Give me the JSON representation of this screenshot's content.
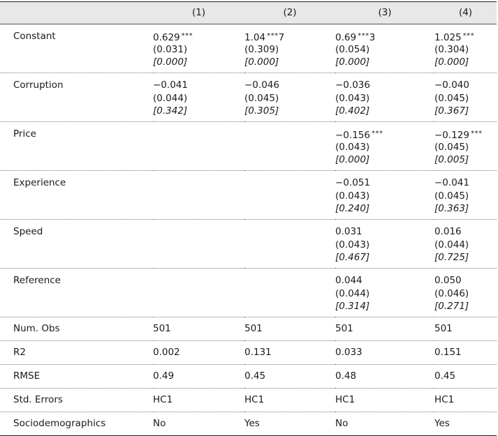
{
  "columns": [
    "",
    "(1)",
    "(2)",
    "(3)",
    "(4)"
  ],
  "coef_rows": [
    {
      "label": "Constant",
      "cells": [
        {
          "coef": "0.629",
          "stars": "***",
          "tail": "",
          "se": "(0.031)",
          "p": "[0.000]"
        },
        {
          "coef": "1.04",
          "stars": "***",
          "tail": "7",
          "se": "(0.309)",
          "p": "[0.000]"
        },
        {
          "coef": "0.69",
          "stars": "***",
          "tail": "3",
          "se": "(0.054)",
          "p": "[0.000]"
        },
        {
          "coef": "1.025",
          "stars": "***",
          "tail": "",
          "se": "(0.304)",
          "p": "[0.000]"
        }
      ]
    },
    {
      "label": "Corruption",
      "cells": [
        {
          "coef": "−0.041",
          "stars": "",
          "tail": "",
          "se": "(0.044)",
          "p": "[0.342]"
        },
        {
          "coef": "−0.046",
          "stars": "",
          "tail": "",
          "se": "(0.045)",
          "p": "[0.305]"
        },
        {
          "coef": "−0.036",
          "stars": "",
          "tail": "",
          "se": "(0.043)",
          "p": "[0.402]"
        },
        {
          "coef": "−0.040",
          "stars": "",
          "tail": "",
          "se": "(0.045)",
          "p": "[0.367]"
        }
      ]
    },
    {
      "label": "Price",
      "cells": [
        {
          "coef": "",
          "stars": "",
          "tail": "",
          "se": "",
          "p": ""
        },
        {
          "coef": "",
          "stars": "",
          "tail": "",
          "se": "",
          "p": ""
        },
        {
          "coef": "−0.156",
          "stars": "***",
          "tail": "",
          "se": "(0.043)",
          "p": "[0.000]"
        },
        {
          "coef": "−0.129",
          "stars": "***",
          "tail": "",
          "se": "(0.045)",
          "p": "[0.005]"
        }
      ]
    },
    {
      "label": "Experience",
      "cells": [
        {
          "coef": "",
          "stars": "",
          "tail": "",
          "se": "",
          "p": ""
        },
        {
          "coef": "",
          "stars": "",
          "tail": "",
          "se": "",
          "p": ""
        },
        {
          "coef": "−0.051",
          "stars": "",
          "tail": "",
          "se": "(0.043)",
          "p": "[0.240]"
        },
        {
          "coef": "−0.041",
          "stars": "",
          "tail": "",
          "se": "(0.045)",
          "p": "[0.363]"
        }
      ]
    },
    {
      "label": "Speed",
      "cells": [
        {
          "coef": "",
          "stars": "",
          "tail": "",
          "se": "",
          "p": ""
        },
        {
          "coef": "",
          "stars": "",
          "tail": "",
          "se": "",
          "p": ""
        },
        {
          "coef": "0.031",
          "stars": "",
          "tail": "",
          "se": "(0.043)",
          "p": "[0.467]"
        },
        {
          "coef": "0.016",
          "stars": "",
          "tail": "",
          "se": "(0.044)",
          "p": "[0.725]"
        }
      ]
    },
    {
      "label": "Reference",
      "cells": [
        {
          "coef": "",
          "stars": "",
          "tail": "",
          "se": "",
          "p": ""
        },
        {
          "coef": "",
          "stars": "",
          "tail": "",
          "se": "",
          "p": ""
        },
        {
          "coef": "0.044",
          "stars": "",
          "tail": "",
          "se": "(0.044)",
          "p": "[0.314]"
        },
        {
          "coef": "0.050",
          "stars": "",
          "tail": "",
          "se": "(0.046)",
          "p": "[0.271]"
        }
      ]
    }
  ],
  "stat_rows": [
    {
      "label": "Num. Obs",
      "values": [
        "501",
        "501",
        "501",
        "501"
      ]
    },
    {
      "label": "R2",
      "values": [
        "0.002",
        "0.131",
        "0.033",
        "0.151"
      ]
    },
    {
      "label": "RMSE",
      "values": [
        "0.49",
        "0.45",
        "0.48",
        "0.45"
      ]
    },
    {
      "label": "Std. Errors",
      "values": [
        "HC1",
        "HC1",
        "HC1",
        "HC1"
      ]
    },
    {
      "label": "Sociodemographics",
      "values": [
        "No",
        "Yes",
        "No",
        "Yes"
      ]
    }
  ]
}
